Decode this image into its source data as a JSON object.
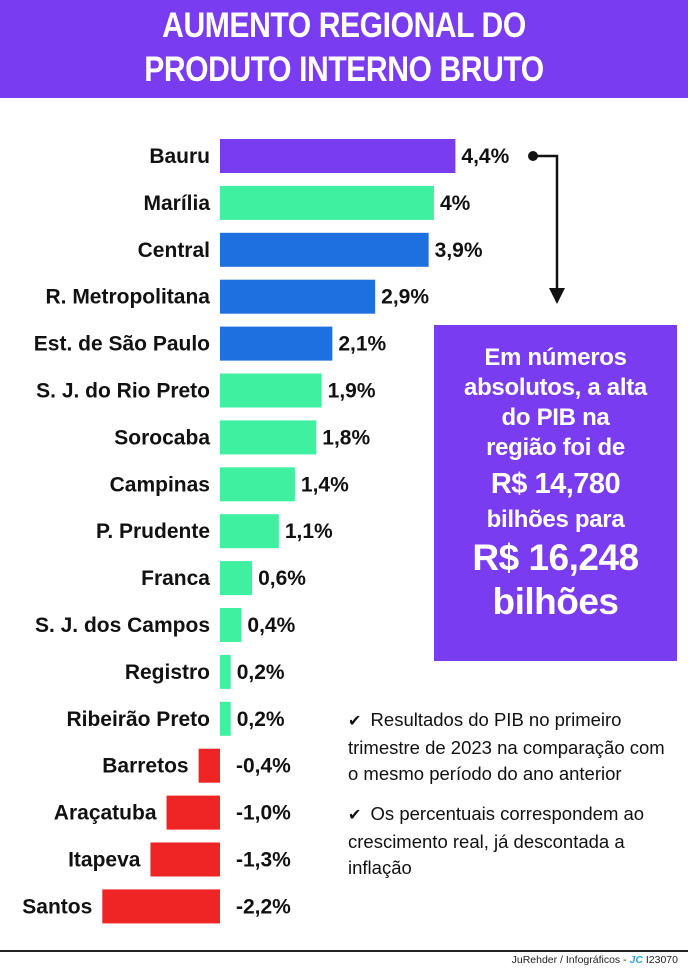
{
  "header": {
    "title_line1": "AUMENTO REGIONAL DO",
    "title_line2": "PRODUTO INTERNO BRUTO"
  },
  "colors": {
    "purple": "#7a3cf0",
    "blue": "#1e6fe0",
    "green": "#3ef0a0",
    "red": "#ef2525"
  },
  "chart_data": {
    "type": "bar",
    "orientation": "horizontal",
    "title": "AUMENTO REGIONAL DO PRODUTO INTERNO BRUTO",
    "categories": [
      "Bauru",
      "Marília",
      "Central",
      "R. Metropolitana",
      "Est. de São Paulo",
      "S. J. do Rio Preto",
      "Sorocaba",
      "Campinas",
      "P. Prudente",
      "Franca",
      "S. J. dos Campos",
      "Registro",
      "Ribeirão Preto",
      "Barretos",
      "Araçatuba",
      "Itapeva",
      "Santos"
    ],
    "values": [
      4.4,
      4,
      3.9,
      2.9,
      2.1,
      1.9,
      1.8,
      1.4,
      1.1,
      0.6,
      0.4,
      0.2,
      0.2,
      -0.4,
      -1.0,
      -1.3,
      -2.2
    ],
    "value_labels": [
      "4,4%",
      "4%",
      "3,9%",
      "2,9%",
      "2,1%",
      "1,9%",
      "1,8%",
      "1,4%",
      "1,1%",
      "0,6%",
      "0,4%",
      "0,2%",
      "0,2%",
      "-0,4%",
      "-1,0%",
      "-1,3%",
      "-2,2%"
    ],
    "bar_colors": [
      "purple",
      "green",
      "blue",
      "blue",
      "blue",
      "green",
      "green",
      "green",
      "green",
      "green",
      "green",
      "green",
      "green",
      "red",
      "red",
      "red",
      "red"
    ],
    "grid": false
  },
  "callout": {
    "line1": "Em números",
    "line2": "absolutos, a alta",
    "line3": "do PIB na",
    "line4": "região foi de",
    "value_from": "R$ 14,780",
    "line5": "bilhões para",
    "value_to": "R$ 16,248",
    "line6": "bilhões"
  },
  "notes": {
    "check_icon": "✔",
    "note1": "Resultados do PIB no primeiro trimestre de 2023 na comparação com o mesmo período do ano anterior",
    "note2": "Os percentuais correspondem ao crescimento real, já descontada a inflação"
  },
  "footer": {
    "credit": "JuRehder  /  Infográficos -",
    "logo": "JC",
    "code": "I23070"
  }
}
